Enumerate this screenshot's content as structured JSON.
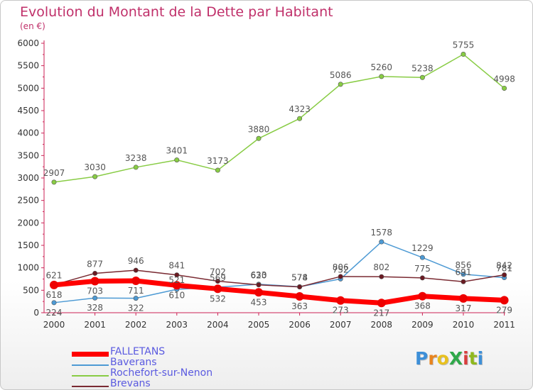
{
  "title": "Evolution du Montant de la Dette par Habitant",
  "subtitle": "(en €)",
  "logo": {
    "text": "ProXiti",
    "letters": [
      "P",
      "r",
      "o",
      "X",
      "i",
      "t",
      "i"
    ],
    "colors": [
      "#3d8fd8",
      "#e8841e",
      "#e8c01e",
      "#2fa84a",
      "#d83d3d",
      "#8fb81e",
      "#3d8fd8"
    ]
  },
  "colors": {
    "axis": "#cc2255",
    "grid_text": "#333333",
    "label_text": "#555555"
  },
  "chart_data": {
    "type": "line",
    "title": "Evolution du Montant de la Dette par Habitant",
    "ylabel": "(en €)",
    "xlabel": "",
    "ylim": [
      0,
      6000
    ],
    "yticks": [
      0,
      500,
      1000,
      1500,
      2000,
      2500,
      3000,
      3500,
      4000,
      4500,
      5000,
      5500,
      6000
    ],
    "x": [
      "2000",
      "2001",
      "2002",
      "2003",
      "2004",
      "2005",
      "2006",
      "2007",
      "2008",
      "2009",
      "2010",
      "2011"
    ],
    "legend_position": "bottom-left",
    "series": [
      {
        "name": "FALLETANS",
        "color": "#ff0000",
        "marker": "#ee0000",
        "values": [
          618,
          703,
          711,
          610,
          532,
          453,
          363,
          273,
          217,
          368,
          317,
          279
        ]
      },
      {
        "name": "Baverans",
        "color": "#4d9ad4",
        "marker": "#4d9ad4",
        "values": [
          224,
          328,
          322,
          521,
          569,
          633,
          578,
          752,
          1578,
          1229,
          856,
          781
        ]
      },
      {
        "name": "Rochefort-sur-Nenon",
        "color": "#88cc44",
        "marker": "#88cc44",
        "values": [
          2907,
          3030,
          3238,
          3401,
          3173,
          3880,
          4323,
          5086,
          5260,
          5238,
          5755,
          4998
        ]
      },
      {
        "name": "Brevans",
        "color": "#7a2a32",
        "marker": "#6a1a22",
        "values": [
          621,
          877,
          946,
          841,
          702,
          620,
          574,
          806,
          802,
          775,
          691,
          842
        ]
      }
    ]
  }
}
